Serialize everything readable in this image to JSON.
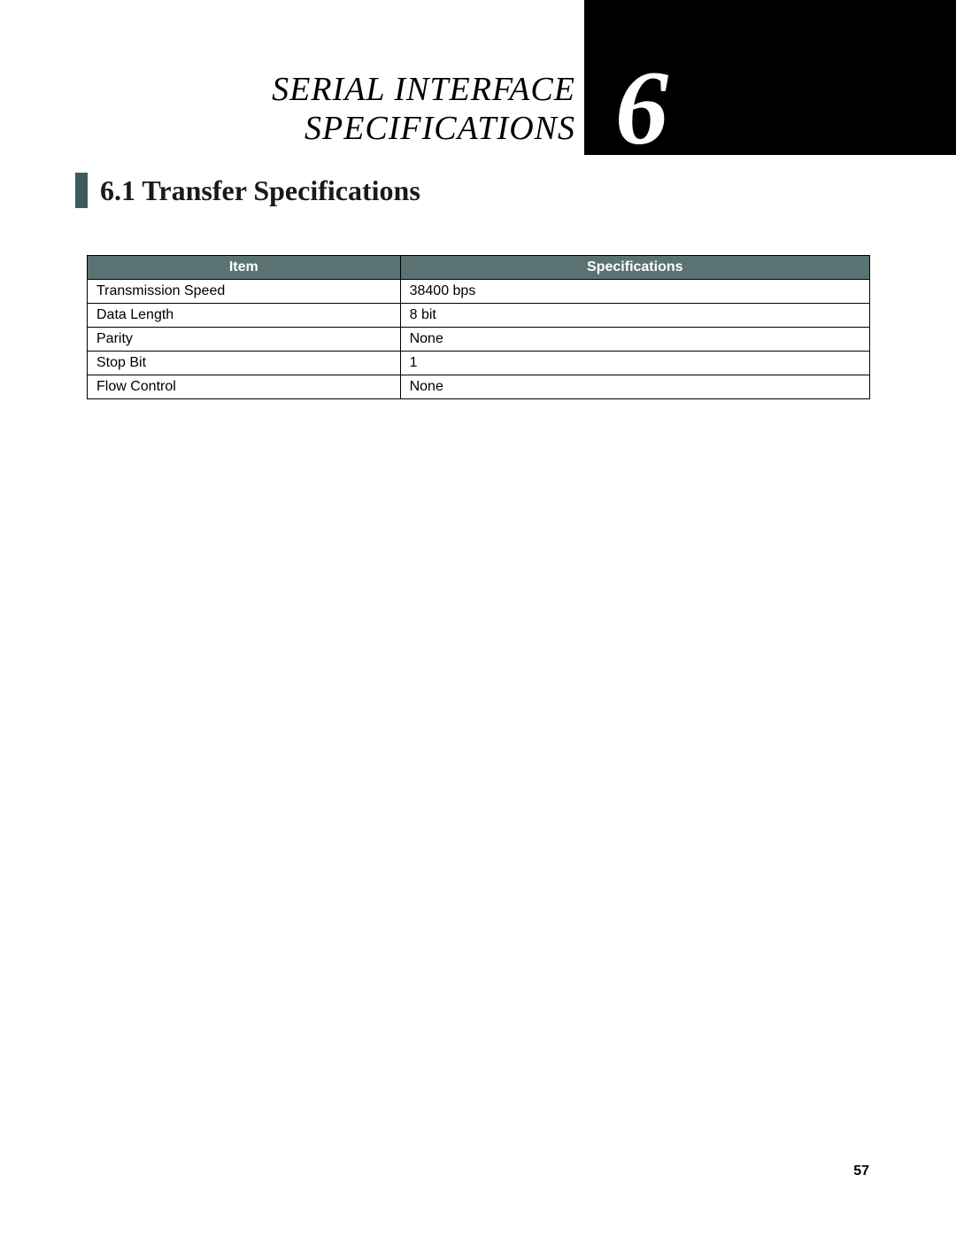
{
  "chapter": {
    "number": "6",
    "title_line1": "SERIAL INTERFACE",
    "title_line2": "SPECIFICATIONS"
  },
  "section": {
    "heading": "6.1 Transfer Specifications"
  },
  "table": {
    "columns": [
      "Item",
      "Specifications"
    ],
    "rows": [
      [
        "Transmission Speed",
        "38400 bps"
      ],
      [
        "Data Length",
        "8 bit"
      ],
      [
        "Parity",
        "None"
      ],
      [
        "Stop Bit",
        "1"
      ],
      [
        "Flow Control",
        "None"
      ]
    ],
    "header_bg": "#5a7272",
    "header_fg": "#ffffff",
    "border_color": "#000000",
    "cell_fontsize": 16
  },
  "page_number": "57",
  "colors": {
    "accent_bar": "#3f5a5a",
    "black_box": "#000000",
    "page_bg": "#ffffff"
  }
}
